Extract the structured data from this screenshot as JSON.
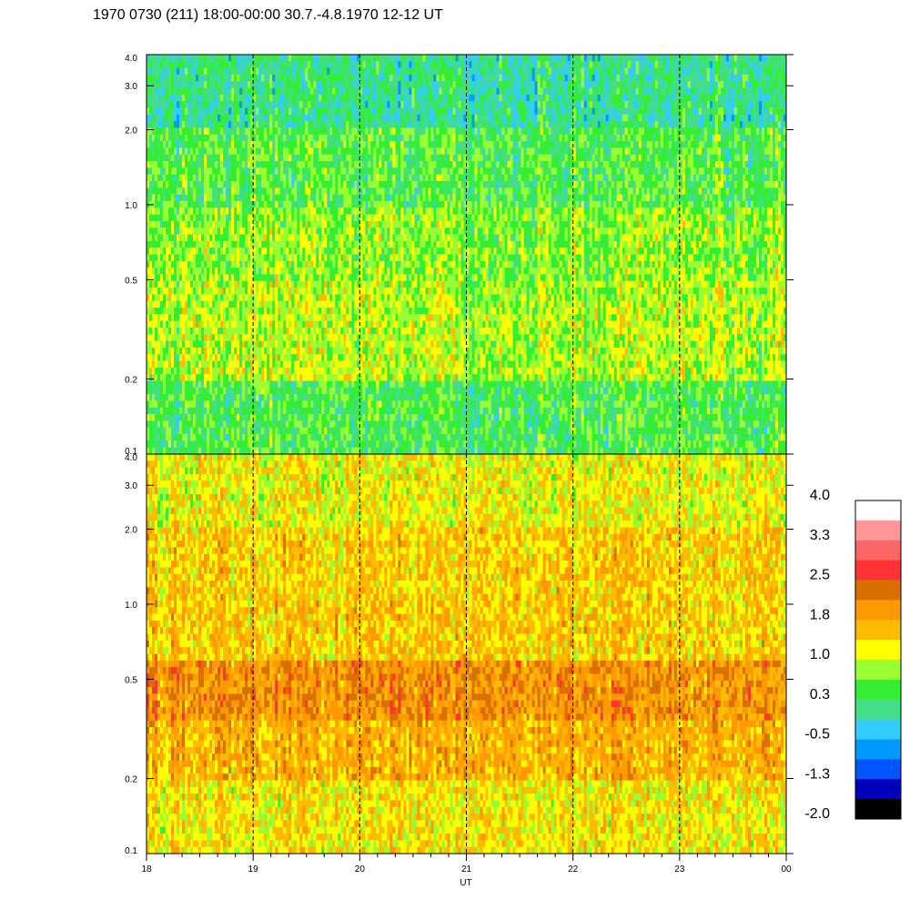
{
  "chart_data": [
    {
      "type": "heatmap",
      "title": "1970 0730 (211) 18:00-00:00 30.7.-4.8.1970  12-12 UT",
      "x_ticks": [
        "18",
        "19",
        "20",
        "21",
        "22",
        "23",
        "00"
      ],
      "xlabel": "UT",
      "y_scale": "log",
      "ylim": [
        0.1,
        4.0
      ],
      "y_ticks": [
        "0.1",
        "0.2",
        "0.5",
        "1.0",
        "2.0",
        "3.0",
        "4.0"
      ],
      "dashed_hour_markers": true,
      "panels": [
        {
          "position": "top",
          "dominant_level_by_band": [
            {
              "y_range": [
                0.1,
                0.2
              ],
              "level": 0.4
            },
            {
              "y_range": [
                0.2,
                0.5
              ],
              "level": 0.9
            },
            {
              "y_range": [
                0.5,
                1.0
              ],
              "level": 0.75
            },
            {
              "y_range": [
                1.0,
                2.0
              ],
              "level": 0.45
            },
            {
              "y_range": [
                2.0,
                4.0
              ],
              "level": 0.1
            }
          ]
        },
        {
          "position": "bottom",
          "dominant_level_by_band": [
            {
              "y_range": [
                0.1,
                0.2
              ],
              "level": 1.3
            },
            {
              "y_range": [
                0.2,
                0.35
              ],
              "level": 1.7
            },
            {
              "y_range": [
                0.35,
                0.6
              ],
              "level": 2.0
            },
            {
              "y_range": [
                0.6,
                2.0
              ],
              "level": 1.5
            },
            {
              "y_range": [
                2.0,
                4.0
              ],
              "level": 1.2
            }
          ]
        }
      ],
      "colorbar": {
        "labels": [
          "4.0",
          "3.3",
          "2.5",
          "1.8",
          "1.0",
          "0.3",
          "-0.5",
          "-1.3",
          "-2.0"
        ],
        "colors": [
          "#ffffff",
          "#ff9999",
          "#ff6666",
          "#ff3333",
          "#d97000",
          "#ff9900",
          "#ffbb00",
          "#ffff00",
          "#99ff33",
          "#33ee33",
          "#44dd88",
          "#33ccff",
          "#0099ff",
          "#0055ff",
          "#0000bb",
          "#000000"
        ]
      }
    }
  ]
}
